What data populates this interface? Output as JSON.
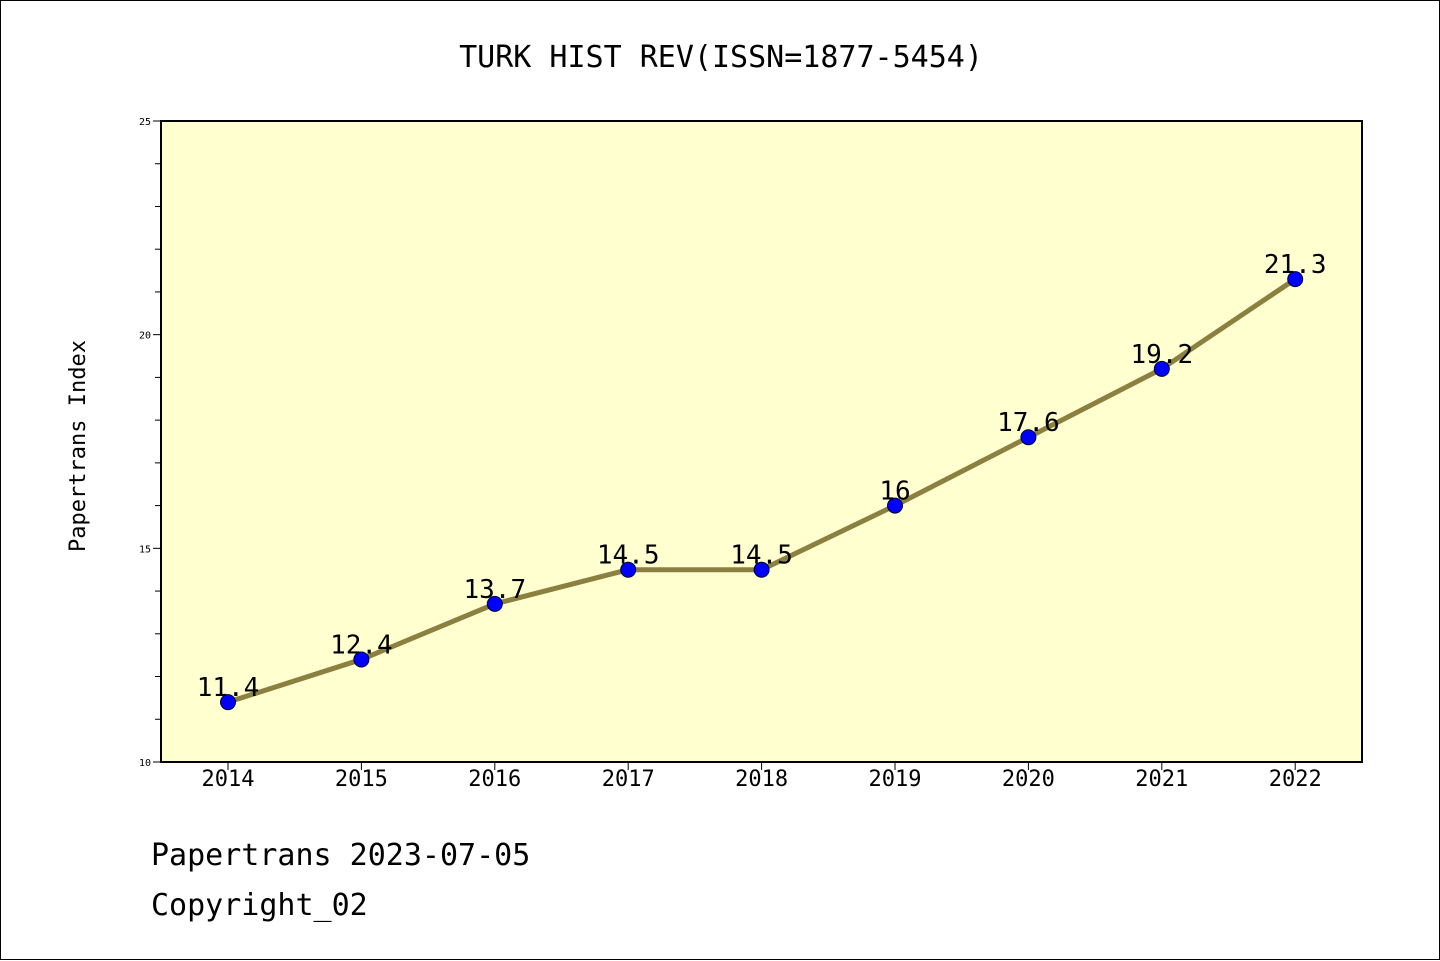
{
  "chart_data": {
    "type": "line",
    "title": "TURK HIST REV(ISSN=1877-5454)",
    "xlabel": "",
    "ylabel": "Papertrans Index",
    "x": [
      "2014",
      "2015",
      "2016",
      "2017",
      "2018",
      "2019",
      "2020",
      "2021",
      "2022"
    ],
    "values": [
      11.4,
      12.4,
      13.7,
      14.5,
      14.5,
      16,
      17.6,
      19.2,
      21.3
    ],
    "data_labels": [
      "11.4",
      "12.4",
      "13.7",
      "14.5",
      "14.5",
      "16",
      "17.6",
      "19.2",
      "21.3"
    ],
    "ylim": [
      10,
      25
    ],
    "yticks": [
      "10",
      "15",
      "20",
      "25"
    ],
    "grid": false,
    "colors": {
      "plot_background": "#ffffd0",
      "line": "#8b8040",
      "marker": "#0000ff"
    }
  },
  "footer": {
    "line1": "Papertrans 2023-07-05",
    "line2": "Copyright_02"
  }
}
